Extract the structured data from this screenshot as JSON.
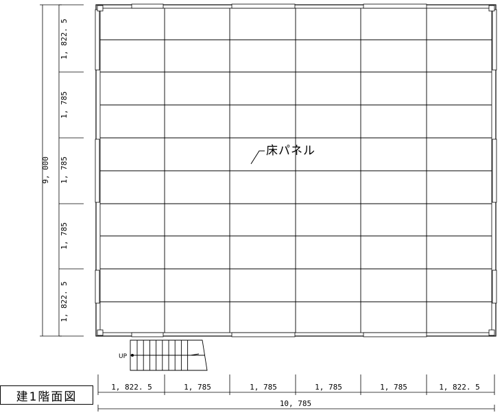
{
  "drawing": {
    "title": "建1階面図",
    "panel_label": "床パネル",
    "up_label": "UP"
  },
  "dimensions": {
    "bottom_segments": [
      "1, 822. 5",
      "1, 785",
      "1, 785",
      "1, 785",
      "1, 785",
      "1, 822. 5"
    ],
    "bottom_total": "10, 785",
    "left_segments": [
      "1, 822. 5",
      "1, 785",
      "1, 785",
      "1, 785",
      "1, 822. 5"
    ],
    "left_total": "9, 000"
  },
  "colors": {
    "line": "#000000",
    "background": "#ffffff"
  }
}
